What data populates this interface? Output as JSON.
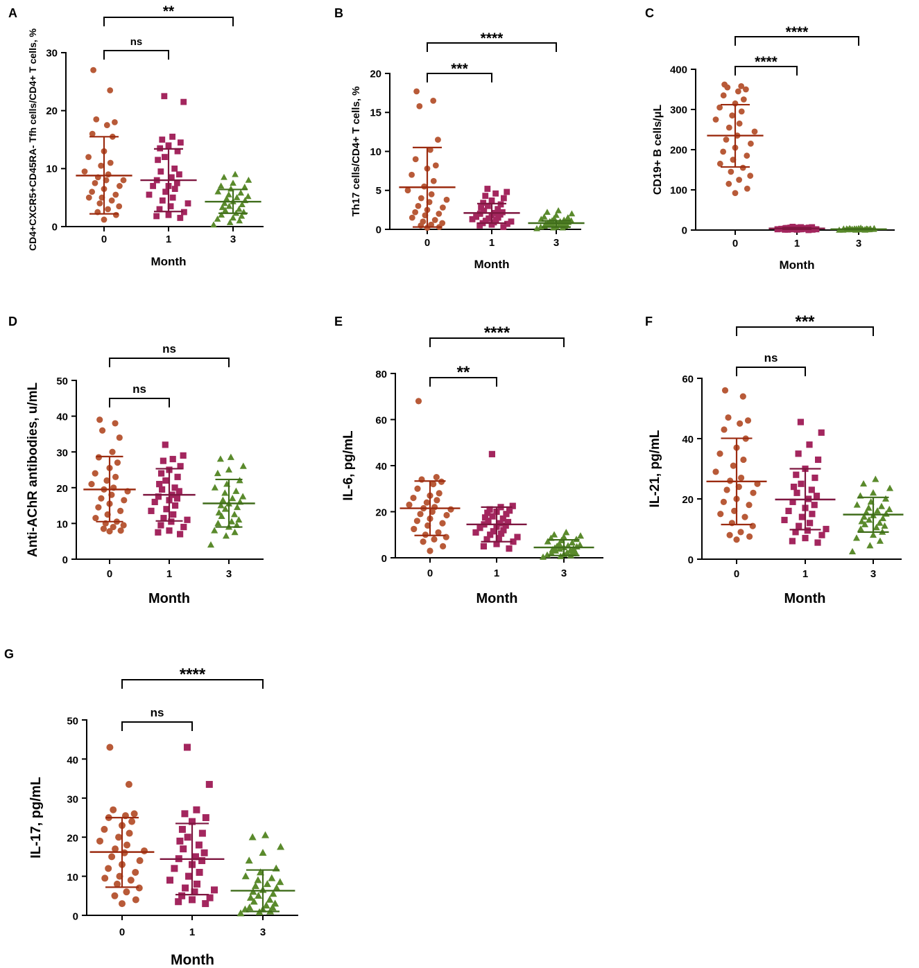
{
  "figure": {
    "group_colors": [
      "#b85a38",
      "#a3265e",
      "#5a8a2c"
    ],
    "summary_colors": [
      "#9b2b10",
      "#7e1740",
      "#3f6c1a"
    ],
    "group_markers": [
      "circle",
      "square",
      "triangle"
    ],
    "x_categories": [
      "0",
      "1",
      "3"
    ]
  },
  "chart_data": [
    {
      "type": "scatter",
      "panel": "A",
      "xlabel": "Month",
      "ylabel": "CD4+CXCR5+CD45RA- Tfh cells/CD4+ T cells, %",
      "ylim": [
        0,
        30
      ],
      "yticks": [
        "0",
        "10",
        "20",
        "30"
      ],
      "categories": [
        "0",
        "1",
        "3"
      ],
      "series": [
        {
          "name": "0",
          "mean": 8.8,
          "sd_low": 2.2,
          "sd_high": 15.5,
          "values": [
            27,
            23.5,
            18.5,
            18,
            17.5,
            16,
            15.5,
            13,
            12,
            11,
            10.5,
            9.5,
            9,
            8.5,
            8,
            8,
            7.5,
            7,
            6.5,
            6,
            5.5,
            5,
            5,
            4.5,
            4,
            3.5,
            3,
            2.5,
            2,
            1.2
          ]
        },
        {
          "name": "1",
          "mean": 8.0,
          "sd_low": 2.6,
          "sd_high": 13.4,
          "values": [
            22.5,
            21.5,
            15.5,
            15,
            14.5,
            14,
            13.5,
            13,
            12,
            11.5,
            10,
            9.5,
            9,
            8.5,
            8,
            7.5,
            7,
            7,
            6.5,
            6,
            5.5,
            5,
            4.5,
            4,
            3.5,
            3,
            2.5,
            2,
            1.8,
            1.5
          ]
        },
        {
          "name": "3",
          "mean": 4.3,
          "sd_low": 2.3,
          "sd_high": 6.4,
          "values": [
            9,
            8.5,
            8,
            7.5,
            7,
            6.8,
            6.5,
            6,
            5.8,
            5.5,
            5.2,
            5,
            4.8,
            4.5,
            4.3,
            4,
            3.8,
            3.5,
            3.3,
            3,
            2.8,
            2.5,
            2.3,
            2,
            1.8,
            1.5,
            1.3,
            1,
            0.7,
            0.3
          ]
        }
      ],
      "comparisons": [
        {
          "from": 0,
          "to": 1,
          "label": "ns"
        },
        {
          "from": 0,
          "to": 2,
          "label": "**"
        }
      ]
    },
    {
      "type": "scatter",
      "panel": "B",
      "xlabel": "Month",
      "ylabel": "Th17 cells/CD4+ T cells, %",
      "ylim": [
        0,
        20
      ],
      "yticks": [
        "0",
        "5",
        "10",
        "15",
        "20"
      ],
      "categories": [
        "0",
        "1",
        "3"
      ],
      "series": [
        {
          "name": "0",
          "mean": 5.4,
          "sd_low": 0.3,
          "sd_high": 10.5,
          "values": [
            17.7,
            16.5,
            15.8,
            11.5,
            10.2,
            9,
            8.2,
            7.8,
            7,
            6.2,
            5.5,
            5,
            4.5,
            4,
            3.8,
            3.5,
            3,
            2.8,
            2.5,
            2.2,
            2,
            1.8,
            1.5,
            1.2,
            1,
            0.8,
            0.6,
            0.5,
            0.3,
            0.2
          ]
        },
        {
          "name": "1",
          "mean": 2.1,
          "sd_low": 0.8,
          "sd_high": 3.3,
          "values": [
            5.2,
            4.8,
            4.6,
            4.3,
            4,
            3.7,
            3.4,
            3.2,
            3,
            2.8,
            2.6,
            2.4,
            2.2,
            2.1,
            2,
            1.9,
            1.8,
            1.6,
            1.5,
            1.4,
            1.3,
            1.2,
            1.1,
            1,
            0.9,
            0.8,
            0.7,
            0.6,
            0.5,
            0.3
          ]
        },
        {
          "name": "3",
          "mean": 0.8,
          "sd_low": 0.3,
          "sd_high": 1.1,
          "values": [
            2.4,
            2.2,
            2,
            1.8,
            1.6,
            1.5,
            1.4,
            1.3,
            1.2,
            1.1,
            1.1,
            1,
            1,
            0.9,
            0.9,
            0.8,
            0.8,
            0.7,
            0.7,
            0.6,
            0.6,
            0.5,
            0.5,
            0.4,
            0.4,
            0.3,
            0.3,
            0.2,
            0.2,
            0.1
          ]
        }
      ],
      "comparisons": [
        {
          "from": 0,
          "to": 1,
          "label": "***"
        },
        {
          "from": 0,
          "to": 2,
          "label": "****"
        }
      ]
    },
    {
      "type": "scatter",
      "panel": "C",
      "xlabel": "Month",
      "ylabel": "CD19+ B cells/μL",
      "ylim": [
        0,
        400
      ],
      "yticks": [
        "0",
        "100",
        "200",
        "300",
        "400"
      ],
      "categories": [
        "0",
        "1",
        "3"
      ],
      "series": [
        {
          "name": "0",
          "mean": 235,
          "sd_low": 157,
          "sd_high": 312,
          "values": [
            362,
            358,
            355,
            350,
            345,
            335,
            325,
            315,
            305,
            295,
            285,
            275,
            265,
            255,
            245,
            235,
            225,
            215,
            205,
            195,
            185,
            175,
            165,
            155,
            145,
            135,
            125,
            115,
            103,
            92
          ]
        },
        {
          "name": "1",
          "mean": 4,
          "sd_low": 2,
          "sd_high": 6,
          "values": [
            8,
            7,
            7,
            6,
            6,
            6,
            5,
            5,
            5,
            5,
            4,
            4,
            4,
            4,
            4,
            3,
            3,
            3,
            3,
            3,
            2,
            2,
            2,
            2,
            2,
            1,
            1,
            1,
            1,
            0
          ]
        },
        {
          "name": "3",
          "mean": 2,
          "sd_low": 1,
          "sd_high": 3,
          "values": [
            5,
            4,
            4,
            4,
            3,
            3,
            3,
            3,
            3,
            3,
            2,
            2,
            2,
            2,
            2,
            2,
            2,
            2,
            1,
            1,
            1,
            1,
            1,
            1,
            1,
            1,
            0,
            0,
            0,
            0
          ]
        }
      ],
      "comparisons": [
        {
          "from": 0,
          "to": 1,
          "label": "****"
        },
        {
          "from": 0,
          "to": 2,
          "label": "****"
        }
      ]
    },
    {
      "type": "scatter",
      "panel": "D",
      "xlabel": "Month",
      "ylabel": "Anti-AChR antibodies, u/mL",
      "ylim": [
        0,
        50
      ],
      "yticks": [
        "0",
        "10",
        "20",
        "30",
        "40",
        "50"
      ],
      "categories": [
        "0",
        "1",
        "3"
      ],
      "series": [
        {
          "name": "0",
          "mean": 19.5,
          "sd_low": 10.5,
          "sd_high": 28.7,
          "values": [
            39,
            38,
            36,
            34,
            30,
            28.5,
            27,
            25.5,
            24,
            23,
            22,
            21,
            20,
            19.5,
            19,
            18,
            17,
            16.5,
            15.5,
            14.5,
            13.5,
            12.5,
            11.5,
            10.5,
            10,
            9.5,
            9,
            8.5,
            8,
            7.8
          ]
        },
        {
          "name": "1",
          "mean": 18.0,
          "sd_low": 10.7,
          "sd_high": 25.3,
          "values": [
            32,
            29,
            28,
            27.5,
            26,
            25,
            24,
            23,
            22,
            21,
            20,
            19.5,
            19,
            18,
            17.5,
            17,
            16.5,
            16,
            15,
            14,
            13.5,
            12.5,
            11.5,
            11,
            10.5,
            9.5,
            9,
            8,
            7.5,
            7
          ]
        },
        {
          "name": "3",
          "mean": 15.6,
          "sd_low": 9.0,
          "sd_high": 22.3,
          "values": [
            28.5,
            28,
            26,
            25,
            24,
            22,
            21,
            20,
            19,
            18.5,
            17.5,
            17,
            16.5,
            16,
            15.5,
            15,
            14.5,
            14,
            13,
            12.5,
            12,
            11,
            10.5,
            10,
            9.5,
            9,
            8,
            7.5,
            6.5,
            4
          ]
        }
      ],
      "comparisons": [
        {
          "from": 0,
          "to": 1,
          "label": "ns"
        },
        {
          "from": 0,
          "to": 2,
          "label": "ns"
        }
      ]
    },
    {
      "type": "scatter",
      "panel": "E",
      "xlabel": "Month",
      "ylabel": "IL-6, pg/mL",
      "ylim": [
        0,
        80
      ],
      "yticks": [
        "0",
        "20",
        "40",
        "60",
        "80"
      ],
      "categories": [
        "0",
        "1",
        "3"
      ],
      "series": [
        {
          "name": "0",
          "mean": 21.5,
          "sd_low": 9.7,
          "sd_high": 33.3,
          "values": [
            68,
            35,
            34,
            33,
            32,
            30,
            28,
            27,
            26,
            25,
            24,
            23,
            22,
            21.5,
            21,
            20,
            19,
            18.5,
            17,
            16,
            15,
            14,
            12.5,
            11,
            10,
            9,
            8,
            7,
            5,
            3
          ]
        },
        {
          "name": "1",
          "mean": 14.5,
          "sd_low": 7.0,
          "sd_high": 22.0,
          "values": [
            45,
            22.5,
            22,
            21,
            20.5,
            20,
            19.5,
            19,
            18,
            17.5,
            17,
            16,
            15.5,
            15,
            14.5,
            14,
            13.5,
            13,
            12,
            11.5,
            11,
            10.5,
            10,
            9,
            8.5,
            8,
            7,
            6,
            5,
            4
          ]
        },
        {
          "name": "3",
          "mean": 4.5,
          "sd_low": 1.0,
          "sd_high": 7.8,
          "values": [
            11,
            10,
            9.5,
            9,
            8.5,
            8,
            7.5,
            7,
            6.5,
            6,
            5.5,
            5.2,
            5,
            4.8,
            4.5,
            4.2,
            4,
            3.8,
            3.5,
            3.2,
            3,
            2.5,
            2.2,
            2,
            1.8,
            1.5,
            1.2,
            1,
            0.6,
            0.3
          ]
        }
      ],
      "comparisons": [
        {
          "from": 0,
          "to": 1,
          "label": "**"
        },
        {
          "from": 0,
          "to": 2,
          "label": "****"
        }
      ]
    },
    {
      "type": "scatter",
      "panel": "F",
      "xlabel": "Month",
      "ylabel": "IL-21, pg/mL",
      "ylim": [
        0,
        60
      ],
      "yticks": [
        "0",
        "20",
        "40",
        "60"
      ],
      "categories": [
        "0",
        "1",
        "3"
      ],
      "series": [
        {
          "name": "0",
          "mean": 25.8,
          "sd_low": 11.5,
          "sd_high": 40.1,
          "values": [
            56,
            54,
            47,
            46,
            45,
            43,
            40,
            37,
            35,
            33,
            31,
            29,
            27,
            26,
            25,
            24,
            23,
            22,
            20,
            19,
            18,
            16,
            15,
            14,
            12,
            11,
            9,
            8,
            7.5,
            6.5
          ]
        },
        {
          "name": "1",
          "mean": 19.8,
          "sd_low": 9.8,
          "sd_high": 30.0,
          "values": [
            45.5,
            42,
            38,
            35,
            33,
            30,
            28,
            27,
            25,
            24,
            23,
            22,
            21,
            20,
            19,
            18,
            17,
            16,
            15,
            14,
            13,
            12,
            11,
            10,
            9.5,
            9,
            8,
            7,
            6,
            5.5
          ]
        },
        {
          "name": "3",
          "mean": 14.8,
          "sd_low": 9.0,
          "sd_high": 20.5,
          "values": [
            26.5,
            25,
            23.5,
            22,
            21,
            20,
            19,
            18,
            17.5,
            17,
            16.5,
            16,
            15.5,
            15,
            14.5,
            14,
            13.5,
            13,
            12.5,
            12,
            11.5,
            11,
            10.5,
            10,
            9,
            8,
            7,
            6,
            4.5,
            2.5
          ]
        }
      ],
      "comparisons": [
        {
          "from": 0,
          "to": 1,
          "label": "ns"
        },
        {
          "from": 0,
          "to": 2,
          "label": "***"
        }
      ]
    },
    {
      "type": "scatter",
      "panel": "G",
      "xlabel": "Month",
      "ylabel": "IL-17, pg/mL",
      "ylim": [
        0,
        50
      ],
      "yticks": [
        "0",
        "10",
        "20",
        "30",
        "40",
        "50"
      ],
      "categories": [
        "0",
        "1",
        "3"
      ],
      "series": [
        {
          "name": "0",
          "mean": 16.2,
          "sd_low": 7.2,
          "sd_high": 25.0,
          "values": [
            43,
            33.5,
            27,
            26,
            25.5,
            25,
            24,
            23,
            22,
            21,
            20,
            19,
            18,
            17,
            16.5,
            16,
            15,
            14,
            13,
            12,
            11,
            10,
            9.5,
            9,
            8,
            7,
            6,
            5,
            4,
            3
          ]
        },
        {
          "name": "1",
          "mean": 14.4,
          "sd_low": 5.3,
          "sd_high": 23.5,
          "values": [
            43,
            33.5,
            27,
            26,
            25,
            24,
            22,
            21,
            20,
            19,
            18,
            17,
            16,
            15,
            14.5,
            14,
            13,
            12,
            11,
            10,
            9,
            8,
            7,
            6.5,
            6,
            5,
            4.5,
            4,
            3.5,
            3
          ]
        },
        {
          "name": "3",
          "mean": 6.3,
          "sd_low": 1.0,
          "sd_high": 11.6,
          "values": [
            20.5,
            20,
            17.5,
            16,
            14,
            12,
            11,
            10,
            9.5,
            9,
            8.5,
            8,
            7.5,
            7,
            6.5,
            6,
            5.5,
            5,
            4.5,
            4,
            3.5,
            3,
            2.5,
            2,
            2,
            1.5,
            1.5,
            1,
            0.8,
            0.5
          ]
        }
      ],
      "comparisons": [
        {
          "from": 0,
          "to": 1,
          "label": "ns"
        },
        {
          "from": 0,
          "to": 2,
          "label": "****"
        }
      ]
    }
  ]
}
